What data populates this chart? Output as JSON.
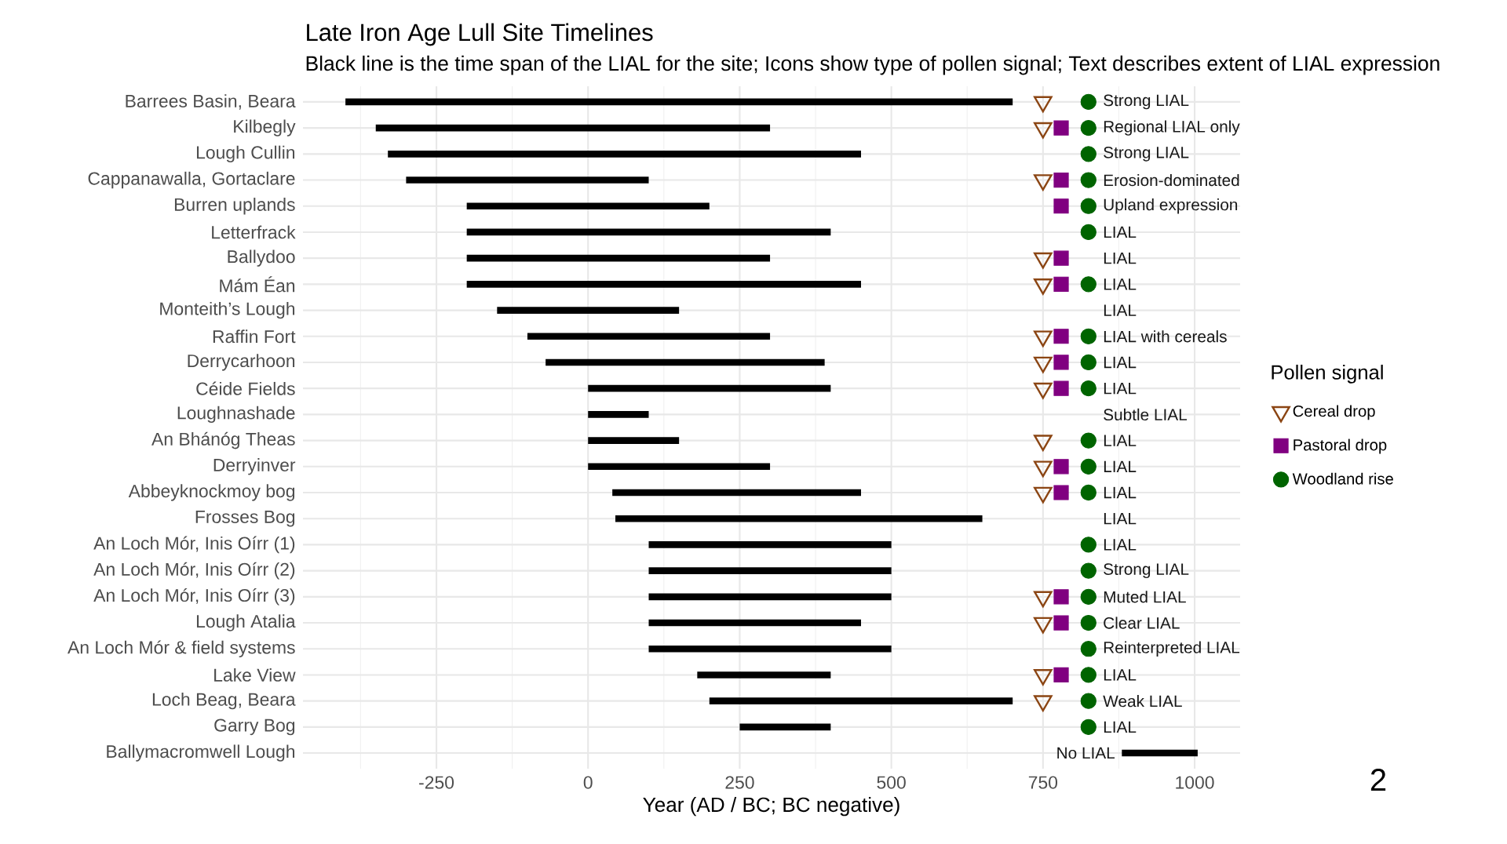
{
  "chart_data": {
    "type": "bar",
    "orientation": "horizontal",
    "title": "Late Iron Age Lull Site Timelines",
    "subtitle": "Black line is the time span of the LIAL for the site; Icons show type of pollen signal; Text describes extent of LIAL expression",
    "xlabel": "Year (AD / BC; BC negative)",
    "legend_title": "Pollen signal",
    "legend": "right",
    "grid": true,
    "categories": [
      "Barrees Basin, Beara",
      "Kilbegly",
      "Lough Cullin",
      "Cappanawalla, Gortaclare",
      "Burren uplands",
      "Letterfrack",
      "Ballydoo",
      "Mám Éan",
      "Monteith’s Lough",
      "Raffin Fort",
      "Derrycarhoon",
      "Céide Fields",
      "Loughnashade",
      "An Bhánóg Theas",
      "Derryinver",
      "Abbeyknockmoy bog",
      "Frosses Bog",
      "An Loch Mór, Inis Oírr (1)",
      "An Loch Mór, Inis Oírr (2)",
      "An Loch Mór, Inis Oírr (3)",
      "Lough Atalia",
      "An Loch Mór & field systems",
      "Lake View",
      "Loch Beag, Beara",
      "Garry Bog",
      "Ballymacromwell Lough"
    ],
    "xlim": [
      -470,
      1075
    ],
    "xticks": [
      -250,
      0,
      250,
      500,
      750,
      1000
    ],
    "series": [
      {
        "color": "#000000",
        "base": [
          -400,
          -350,
          -330,
          -300,
          -200,
          -200,
          -200,
          -200,
          -150,
          -100,
          -70,
          0,
          0,
          0,
          0,
          40,
          45,
          100,
          100,
          100,
          100,
          100,
          180,
          200,
          250,
          880
        ],
        "values": [
          1100,
          650,
          780,
          400,
          400,
          600,
          500,
          650,
          300,
          400,
          460,
          400,
          100,
          150,
          300,
          410,
          605,
          400,
          400,
          400,
          350,
          400,
          220,
          500,
          150,
          125
        ]
      },
      {
        "type": "scatter",
        "name": "Cereal drop",
        "marker": "triangle",
        "color": "#8b4513",
        "values": [
          750,
          750,
          null,
          750,
          null,
          null,
          750,
          750,
          null,
          750,
          750,
          750,
          null,
          750,
          750,
          750,
          null,
          null,
          null,
          750,
          750,
          null,
          750,
          750,
          null,
          null
        ]
      },
      {
        "type": "scatter",
        "name": "Pastoral drop",
        "marker": "square",
        "color": "#800080",
        "values": [
          null,
          780,
          null,
          780,
          780,
          null,
          780,
          780,
          null,
          780,
          780,
          780,
          null,
          null,
          780,
          780,
          null,
          null,
          null,
          780,
          780,
          null,
          780,
          null,
          null,
          null
        ]
      },
      {
        "type": "scatter",
        "name": "Woodland rise",
        "marker": "circle",
        "color": "#006400",
        "values": [
          825,
          825,
          825,
          825,
          825,
          825,
          null,
          825,
          null,
          825,
          825,
          825,
          null,
          825,
          825,
          825,
          null,
          825,
          825,
          825,
          825,
          825,
          825,
          825,
          825,
          null
        ]
      }
    ],
    "annotations": [
      "Strong LIAL",
      "Regional LIAL only",
      "Strong LIAL",
      "Erosion-dominated",
      "Upland expression",
      "LIAL",
      "LIAL",
      "LIAL",
      "LIAL",
      "LIAL with cereals",
      "LIAL",
      "LIAL",
      "Subtle LIAL",
      "LIAL",
      "LIAL",
      "LIAL",
      "LIAL",
      "LIAL",
      "Strong LIAL",
      "Muted LIAL",
      "Clear LIAL",
      "Reinterpreted LIAL",
      "LIAL",
      "Weak LIAL",
      "LIAL",
      "No LIAL",
      "2"
    ]
  }
}
